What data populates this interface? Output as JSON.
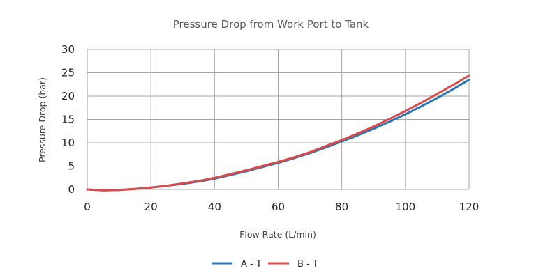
{
  "chart_data": {
    "type": "line",
    "title": "Pressure Drop from Work Port to Tank",
    "xlabel": "Flow Rate (L/min)",
    "ylabel": "Pressure Drop (bar)",
    "xlim": [
      0,
      120
    ],
    "ylim": [
      0,
      30
    ],
    "xticks": [
      "0",
      "20",
      "40",
      "60",
      "80",
      "100",
      "120"
    ],
    "yticks": [
      "0",
      "5",
      "10",
      "15",
      "20",
      "25",
      "30"
    ],
    "grid": true,
    "legend_position": "bottom",
    "series": [
      {
        "name": "A - T",
        "color": "#2e75b6",
        "x": [
          0,
          5,
          10,
          15,
          20,
          25,
          30,
          35,
          40,
          45,
          50,
          55,
          60,
          65,
          70,
          75,
          80,
          85,
          90,
          95,
          100,
          105,
          110,
          115,
          120
        ],
        "y": [
          0,
          -0.2,
          -0.1,
          0.1,
          0.4,
          0.8,
          1.2,
          1.7,
          2.3,
          3.1,
          3.9,
          4.8,
          5.7,
          6.7,
          7.8,
          9.0,
          10.3,
          11.6,
          13.0,
          14.5,
          16.1,
          17.8,
          19.6,
          21.5,
          23.5
        ]
      },
      {
        "name": "B - T",
        "color": "#d94b4b",
        "x": [
          0,
          5,
          10,
          15,
          20,
          25,
          30,
          35,
          40,
          45,
          50,
          55,
          60,
          65,
          70,
          75,
          80,
          85,
          90,
          95,
          100,
          105,
          110,
          115,
          120
        ],
        "y": [
          0,
          -0.2,
          -0.1,
          0.1,
          0.4,
          0.8,
          1.3,
          1.8,
          2.5,
          3.3,
          4.1,
          5.0,
          5.9,
          6.9,
          8.0,
          9.3,
          10.6,
          12.0,
          13.5,
          15.1,
          16.8,
          18.6,
          20.5,
          22.4,
          24.4
        ]
      }
    ]
  }
}
